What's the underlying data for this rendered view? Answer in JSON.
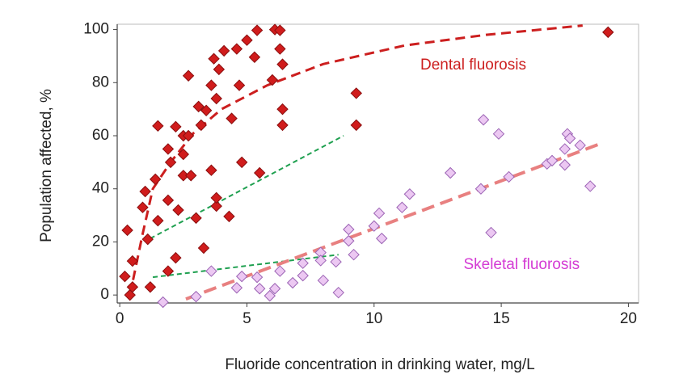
{
  "chart_data": {
    "type": "scatter",
    "xlabel": "Fluoride concentration in drinking water, mg/L",
    "ylabel": "Population affected, %",
    "xlim": [
      -0.1,
      20.4
    ],
    "ylim": [
      -3,
      102
    ],
    "xticks": [
      0,
      5,
      10,
      15,
      20
    ],
    "yticks": [
      0,
      20,
      40,
      60,
      80,
      100
    ],
    "grid": false,
    "series": [
      {
        "color": "#d01c1c",
        "edge": "#8a0f0f",
        "marker": "diamond",
        "x": [
          0.3,
          0.2,
          0.4,
          0.5,
          0.5,
          0.9,
          1.0,
          1.1,
          1.2,
          1.4,
          1.5,
          1.5,
          1.9,
          1.9,
          1.9,
          2.0,
          2.2,
          2.2,
          2.3,
          2.5,
          2.5,
          2.5,
          2.7,
          2.7,
          2.8,
          3.0,
          3.1,
          3.2,
          3.4,
          3.3,
          3.6,
          3.6,
          3.7,
          3.8,
          3.8,
          3.8,
          3.9,
          4.1,
          4.3,
          4.4,
          4.6,
          4.7,
          4.8,
          5.0,
          5.3,
          5.4,
          5.5,
          6.0,
          6.1,
          6.3,
          6.3,
          6.4,
          6.4,
          6.4,
          9.3,
          9.3,
          19.2
        ],
        "values": [
          24.4,
          7,
          0,
          3,
          12.8,
          33,
          39,
          21,
          3,
          43.6,
          28,
          63.7,
          9,
          55,
          35.7,
          50,
          14,
          63.4,
          32,
          45,
          53,
          60,
          60,
          82.6,
          45,
          29,
          71,
          64,
          69.5,
          17.7,
          79,
          47,
          89,
          74,
          33.5,
          36.6,
          85,
          92,
          29.6,
          66.5,
          92.7,
          79,
          50,
          96,
          89.6,
          99.7,
          46,
          81,
          100,
          99.7,
          92.7,
          86.9,
          70,
          64,
          76,
          64,
          99
        ]
      },
      {
        "color": "#ecc8f2",
        "edge": "#9b63b4",
        "marker": "diamond",
        "x": [
          1.7,
          3.0,
          3.6,
          4.6,
          4.8,
          5.4,
          5.5,
          5.9,
          6.1,
          6.3,
          6.8,
          7.2,
          7.2,
          7.9,
          7.9,
          8.0,
          8.5,
          8.6,
          9.0,
          9.0,
          9.2,
          10.0,
          10.2,
          10.3,
          11.1,
          11.4,
          13.0,
          14.3,
          14.2,
          14.6,
          14.9,
          15.3,
          16.8,
          17.0,
          17.5,
          17.5,
          17.6,
          17.7,
          18.1,
          18.5
        ],
        "values": [
          -2.7,
          -0.6,
          9,
          2.7,
          7,
          6.7,
          2.4,
          -0.3,
          2.4,
          9,
          4.6,
          7.3,
          12,
          16,
          13,
          5.5,
          12.5,
          0.9,
          20.4,
          24.7,
          15.2,
          26,
          30.8,
          21.3,
          33,
          38,
          46,
          66,
          40,
          23.5,
          60.7,
          44.5,
          49.4,
          50.6,
          55,
          49,
          60.7,
          59,
          56.4,
          41
        ]
      }
    ],
    "trend_lines": [
      {
        "color": "#cc1f1f",
        "width": 3,
        "dash": "12 7",
        "x": [
          0.4,
          0.9,
          1.3,
          2.0,
          2.9,
          4.0,
          5.8,
          8.0,
          11.2,
          14.4,
          18.2
        ],
        "values": [
          0,
          23,
          40,
          50,
          61,
          70,
          79,
          87,
          94,
          98,
          101.5
        ]
      },
      {
        "color": "#1fa050",
        "width": 2,
        "dash": "6 4",
        "x": [
          1.2,
          8.8
        ],
        "values": [
          21.3,
          60
        ]
      },
      {
        "color": "#1fa050",
        "width": 2,
        "dash": "6 4",
        "x": [
          1.3,
          8.6
        ],
        "values": [
          6.7,
          15.2
        ]
      },
      {
        "color": "#e88080",
        "width": 4,
        "dash": "16 8",
        "x": [
          2.6,
          18.9
        ],
        "values": [
          -1.5,
          57
        ]
      }
    ],
    "annotations": [
      {
        "text": "Dental fluorosis",
        "color": "#cc1f1f",
        "x": 13.9,
        "y": 86.5
      },
      {
        "text": "Skeletal fluorosis",
        "color": "#d43bd4",
        "x": 15.8,
        "y": 11.3
      }
    ]
  }
}
